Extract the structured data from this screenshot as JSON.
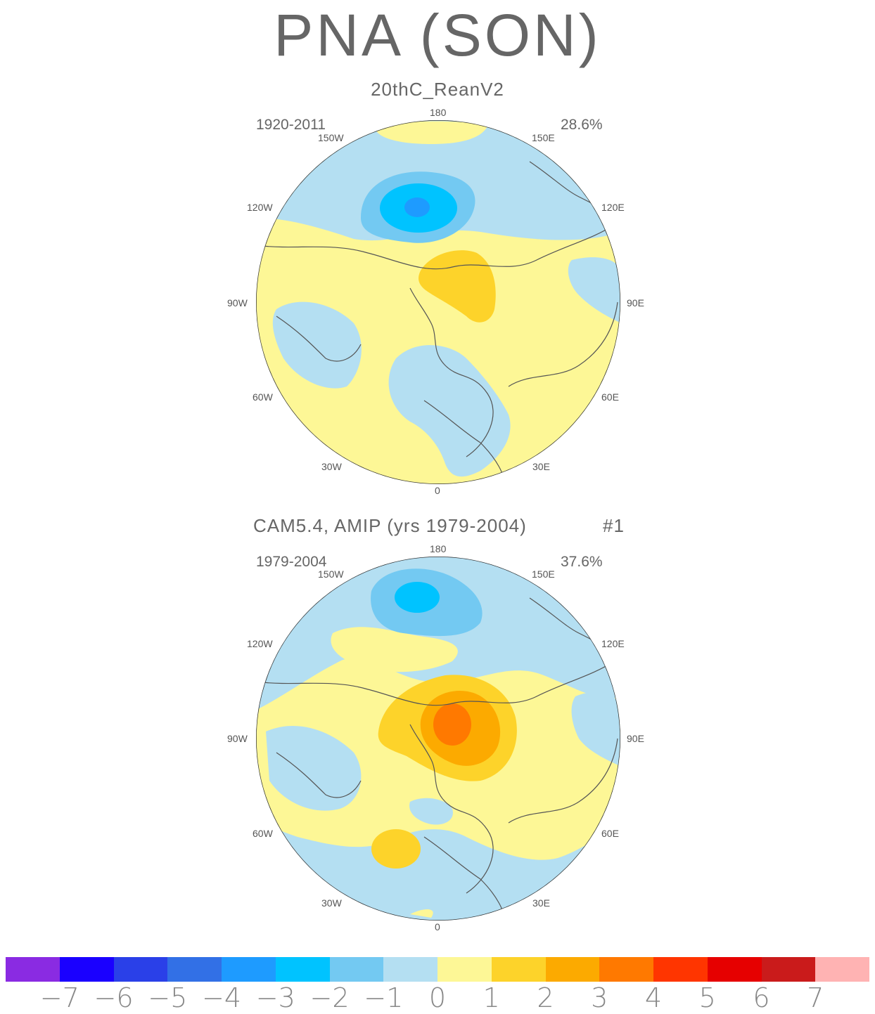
{
  "title": "PNA (SON)",
  "panels": [
    {
      "title": "20thC_ReanV2",
      "years": "1920-2011",
      "variance": "28.6%",
      "run": "",
      "lon_labels": {
        "n": "180",
        "nw": "150W",
        "ne": "150E",
        "wnw": "120W",
        "ene": "120E",
        "w": "90W",
        "e": "90E",
        "wsw": "60W",
        "ese": "60E",
        "sw": "30W",
        "se": "30E",
        "s": "0"
      }
    },
    {
      "title": "CAM5.4, AMIP (yrs 1979-2004)",
      "years": "1979-2004",
      "variance": "37.6%",
      "run": "#1",
      "lon_labels": {
        "n": "180",
        "nw": "150W",
        "ne": "150E",
        "wnw": "120W",
        "ene": "120E",
        "w": "90W",
        "e": "90E",
        "wsw": "60W",
        "ese": "60E",
        "sw": "30W",
        "se": "30E",
        "s": "0"
      }
    }
  ],
  "colorbar": {
    "colors": [
      "#8a2be2",
      "#1a00ff",
      "#2a40e8",
      "#3270e6",
      "#1e9bff",
      "#00c3ff",
      "#73c9f2",
      "#b4dff2",
      "#fdf796",
      "#fdd32a",
      "#fcaa00",
      "#ff7900",
      "#ff3500",
      "#e60000",
      "#ca1b1b",
      "#ffb3b3"
    ],
    "ticks": [
      "-7",
      "-6",
      "-5",
      "-4",
      "-3",
      "-2",
      "-1",
      "0",
      "1",
      "2",
      "3",
      "4",
      "5",
      "6",
      "7"
    ]
  }
}
